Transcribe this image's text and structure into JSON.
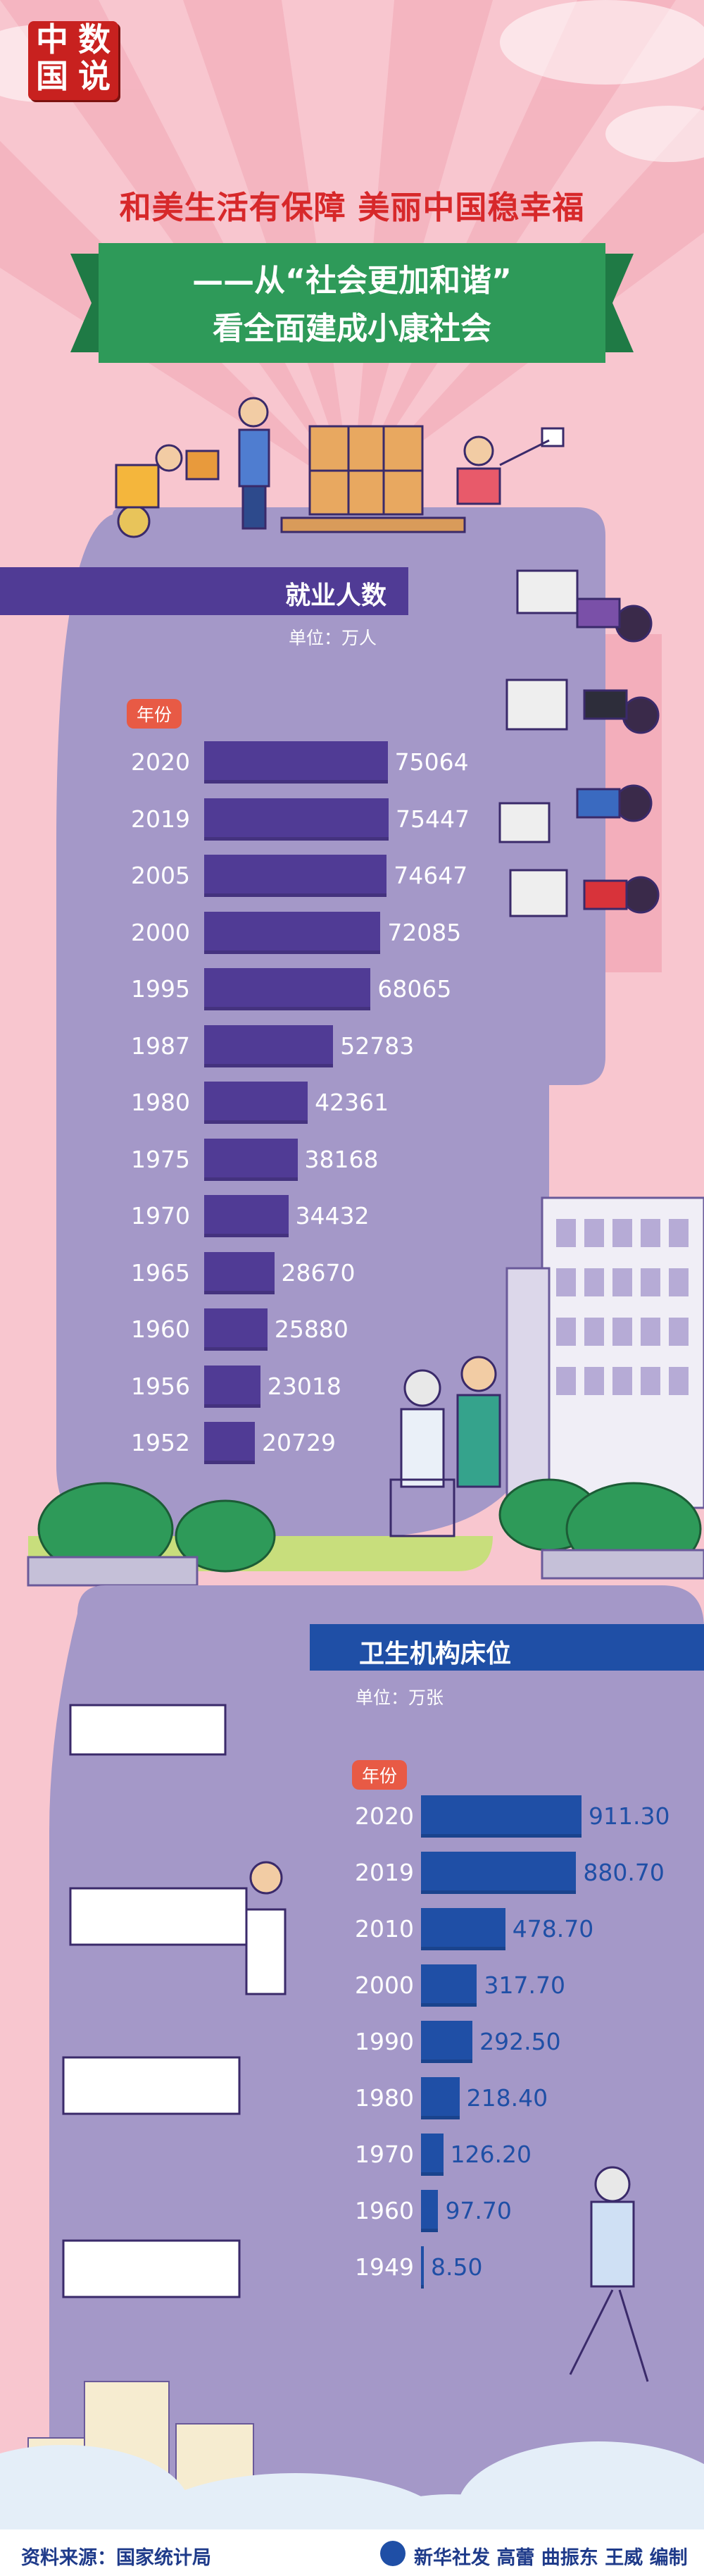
{
  "header": {
    "logo_chars": [
      "中",
      "数",
      "国",
      "说"
    ],
    "headline": "和美生活有保障  美丽中国稳幸福",
    "subtitle_line1": "——从“社会更加和谐”",
    "subtitle_line2": "看全面建成小康社会"
  },
  "chart_data": [
    {
      "type": "bar",
      "orientation": "horizontal",
      "title": "就业人数",
      "unit": "单位：万人",
      "category_label": "年份",
      "categories": [
        "2020",
        "2019",
        "2005",
        "2000",
        "1995",
        "1987",
        "1980",
        "1975",
        "1970",
        "1965",
        "1960",
        "1956",
        "1952"
      ],
      "values": [
        75064,
        75447,
        74647,
        72085,
        68065,
        52783,
        42361,
        38168,
        34432,
        28670,
        25880,
        23018,
        20729
      ],
      "value_labels": [
        "75064",
        "75447",
        "74647",
        "72085",
        "68065",
        "52783",
        "42361",
        "38168",
        "34432",
        "28670",
        "25880",
        "23018",
        "20729"
      ],
      "bar_color": "#503b95"
    },
    {
      "type": "bar",
      "orientation": "horizontal",
      "title": "卫生机构床位",
      "unit": "单位：万张",
      "category_label": "年份",
      "categories": [
        "2020",
        "2019",
        "2010",
        "2000",
        "1990",
        "1980",
        "1970",
        "1960",
        "1949"
      ],
      "values": [
        911.3,
        880.7,
        478.7,
        317.7,
        292.5,
        218.4,
        126.2,
        97.7,
        8.5
      ],
      "value_labels": [
        "911.30",
        "880.70",
        "478.70",
        "317.70",
        "292.50",
        "218.40",
        "126.20",
        "97.70",
        "8.50"
      ],
      "bar_color": "#1f4fa6"
    }
  ],
  "footer": {
    "source": "资料来源：国家统计局",
    "credit": "新华社发 高蕾 曲振东 王威 编制"
  },
  "colors": {
    "pink": "#f8c6cf",
    "purple_light": "#a498c8",
    "purple_dark": "#503b95",
    "red": "#d7282a",
    "green": "#2e9a59",
    "blue": "#1f4fa6"
  }
}
